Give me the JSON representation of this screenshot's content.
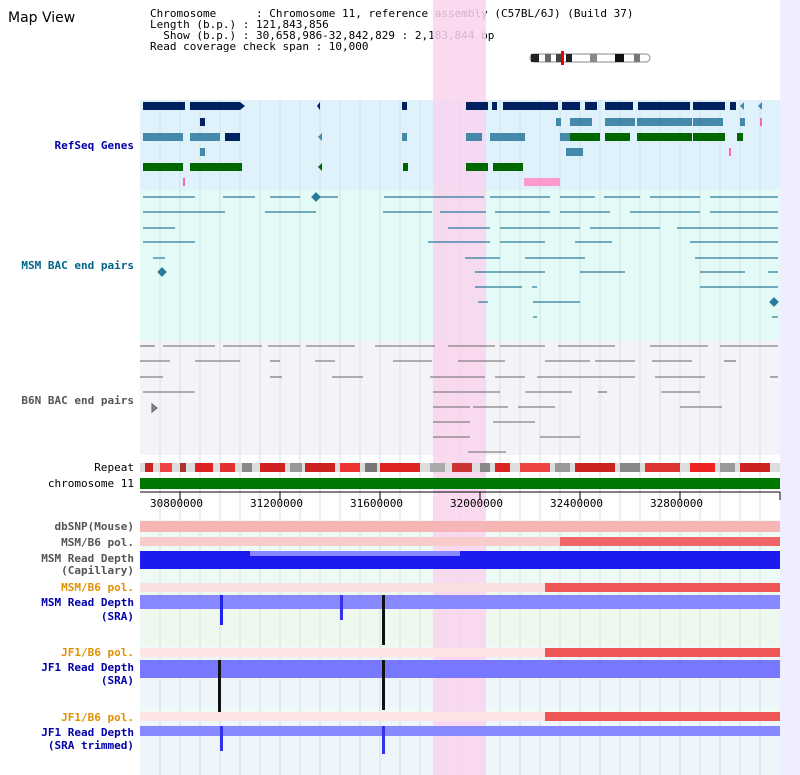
{
  "header": {
    "view_title": "Map View",
    "chromosome_line": "Chromosome      : Chromosome 11, reference assembly (C57BL/6J) (Build 37)",
    "length_line": "Length (b.p.) : 121,843,856",
    "show_line": "  Show (b.p.) : 30,658,986-32,842,829 : 2,183,844 bp",
    "coverage_line": "Read coverage check span : 10,000"
  },
  "tracks": {
    "refseq": "RefSeq Genes",
    "msm_bac": "MSM BAC end pairs",
    "b6n_bac": "B6N BAC end pairs",
    "repeat": "Repeat",
    "chromosome": "chromosome 11",
    "dbsnp": "dbSNP(Mouse)",
    "msm_b6_pol_1": "MSM/B6 pol.",
    "msm_read_depth_cap_1": "MSM Read Depth",
    "msm_read_depth_cap_2": "(Capillary)",
    "msm_b6_pol_2": "MSM/B6 pol.",
    "msm_read_depth_sra_1": "MSM Read Depth",
    "msm_read_depth_sra_2": "(SRA)",
    "jf1_b6_pol_1": "JF1/B6 pol.",
    "jf1_read_depth_sra_1": "JF1 Read Depth",
    "jf1_read_depth_sra_2": "(SRA)",
    "jf1_b6_pol_2": "JF1/B6 pol.",
    "jf1_read_depth_trim_1": "JF1 Read Depth",
    "jf1_read_depth_trim_2": "(SRA trimmed)"
  },
  "axis": {
    "ticks": [
      "30800000",
      "31200000",
      "31600000",
      "32000000",
      "32400000",
      "32800000"
    ]
  },
  "colors": {
    "refseq_bg": "#dff2fb",
    "msm_bg": "#e4faf7",
    "b6n_bg": "#f4f4f8",
    "highlight": "#f9d3ef",
    "chromosome_bar": "#007700",
    "depth_blue": "#2222ee",
    "label_blue": "#0000aa",
    "label_orange": "#e09000",
    "msm_label": "#006688"
  }
}
